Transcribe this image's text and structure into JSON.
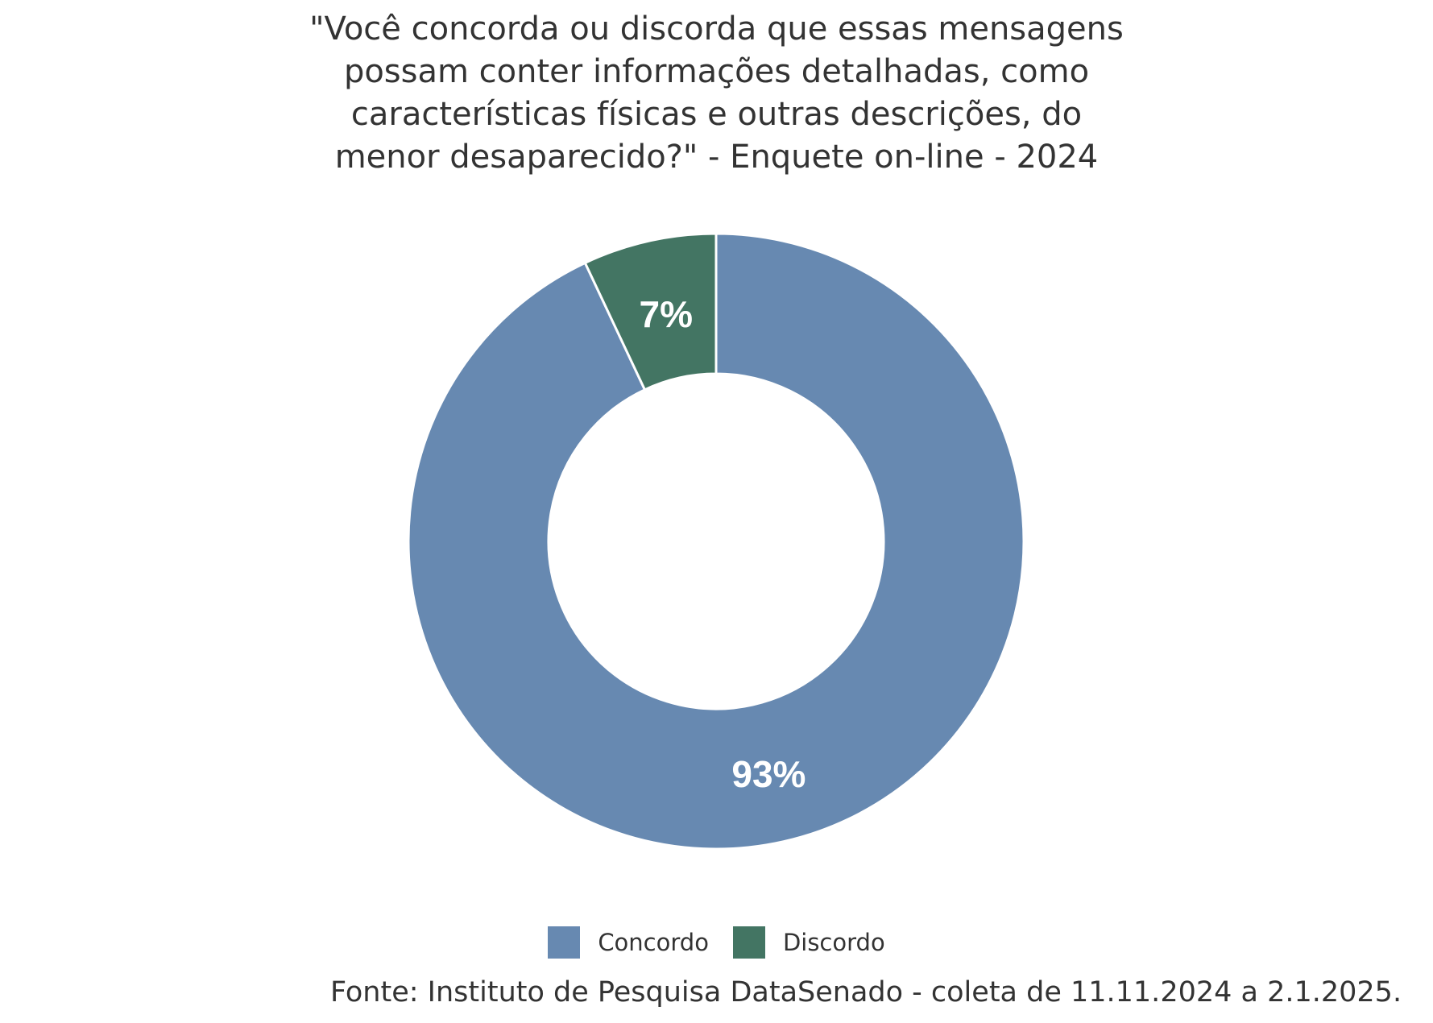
{
  "title_lines": [
    "\"Você concorda ou discorda que essas mensagens",
    "possam conter informações detalhadas, como",
    "características físicas e outras descrições, do",
    "menor desaparecido?\" - Enquete on-line - 2024"
  ],
  "chart_data": {
    "type": "pie",
    "variant": "donut",
    "title": "\"Você concorda ou discorda que essas mensagens possam conter informações detalhadas, como características físicas e outras descrições, do menor desaparecido?\" - Enquete on-line - 2024",
    "categories": [
      "Concordo",
      "Discordo"
    ],
    "values": [
      93,
      7
    ],
    "data_labels": [
      "93%",
      "7%"
    ],
    "colors": [
      "#6789b1",
      "#437563"
    ],
    "legend_position": "bottom"
  },
  "source": "Fonte: Instituto de Pesquisa DataSenado - coleta de 11.11.2024 a 2.1.2025."
}
